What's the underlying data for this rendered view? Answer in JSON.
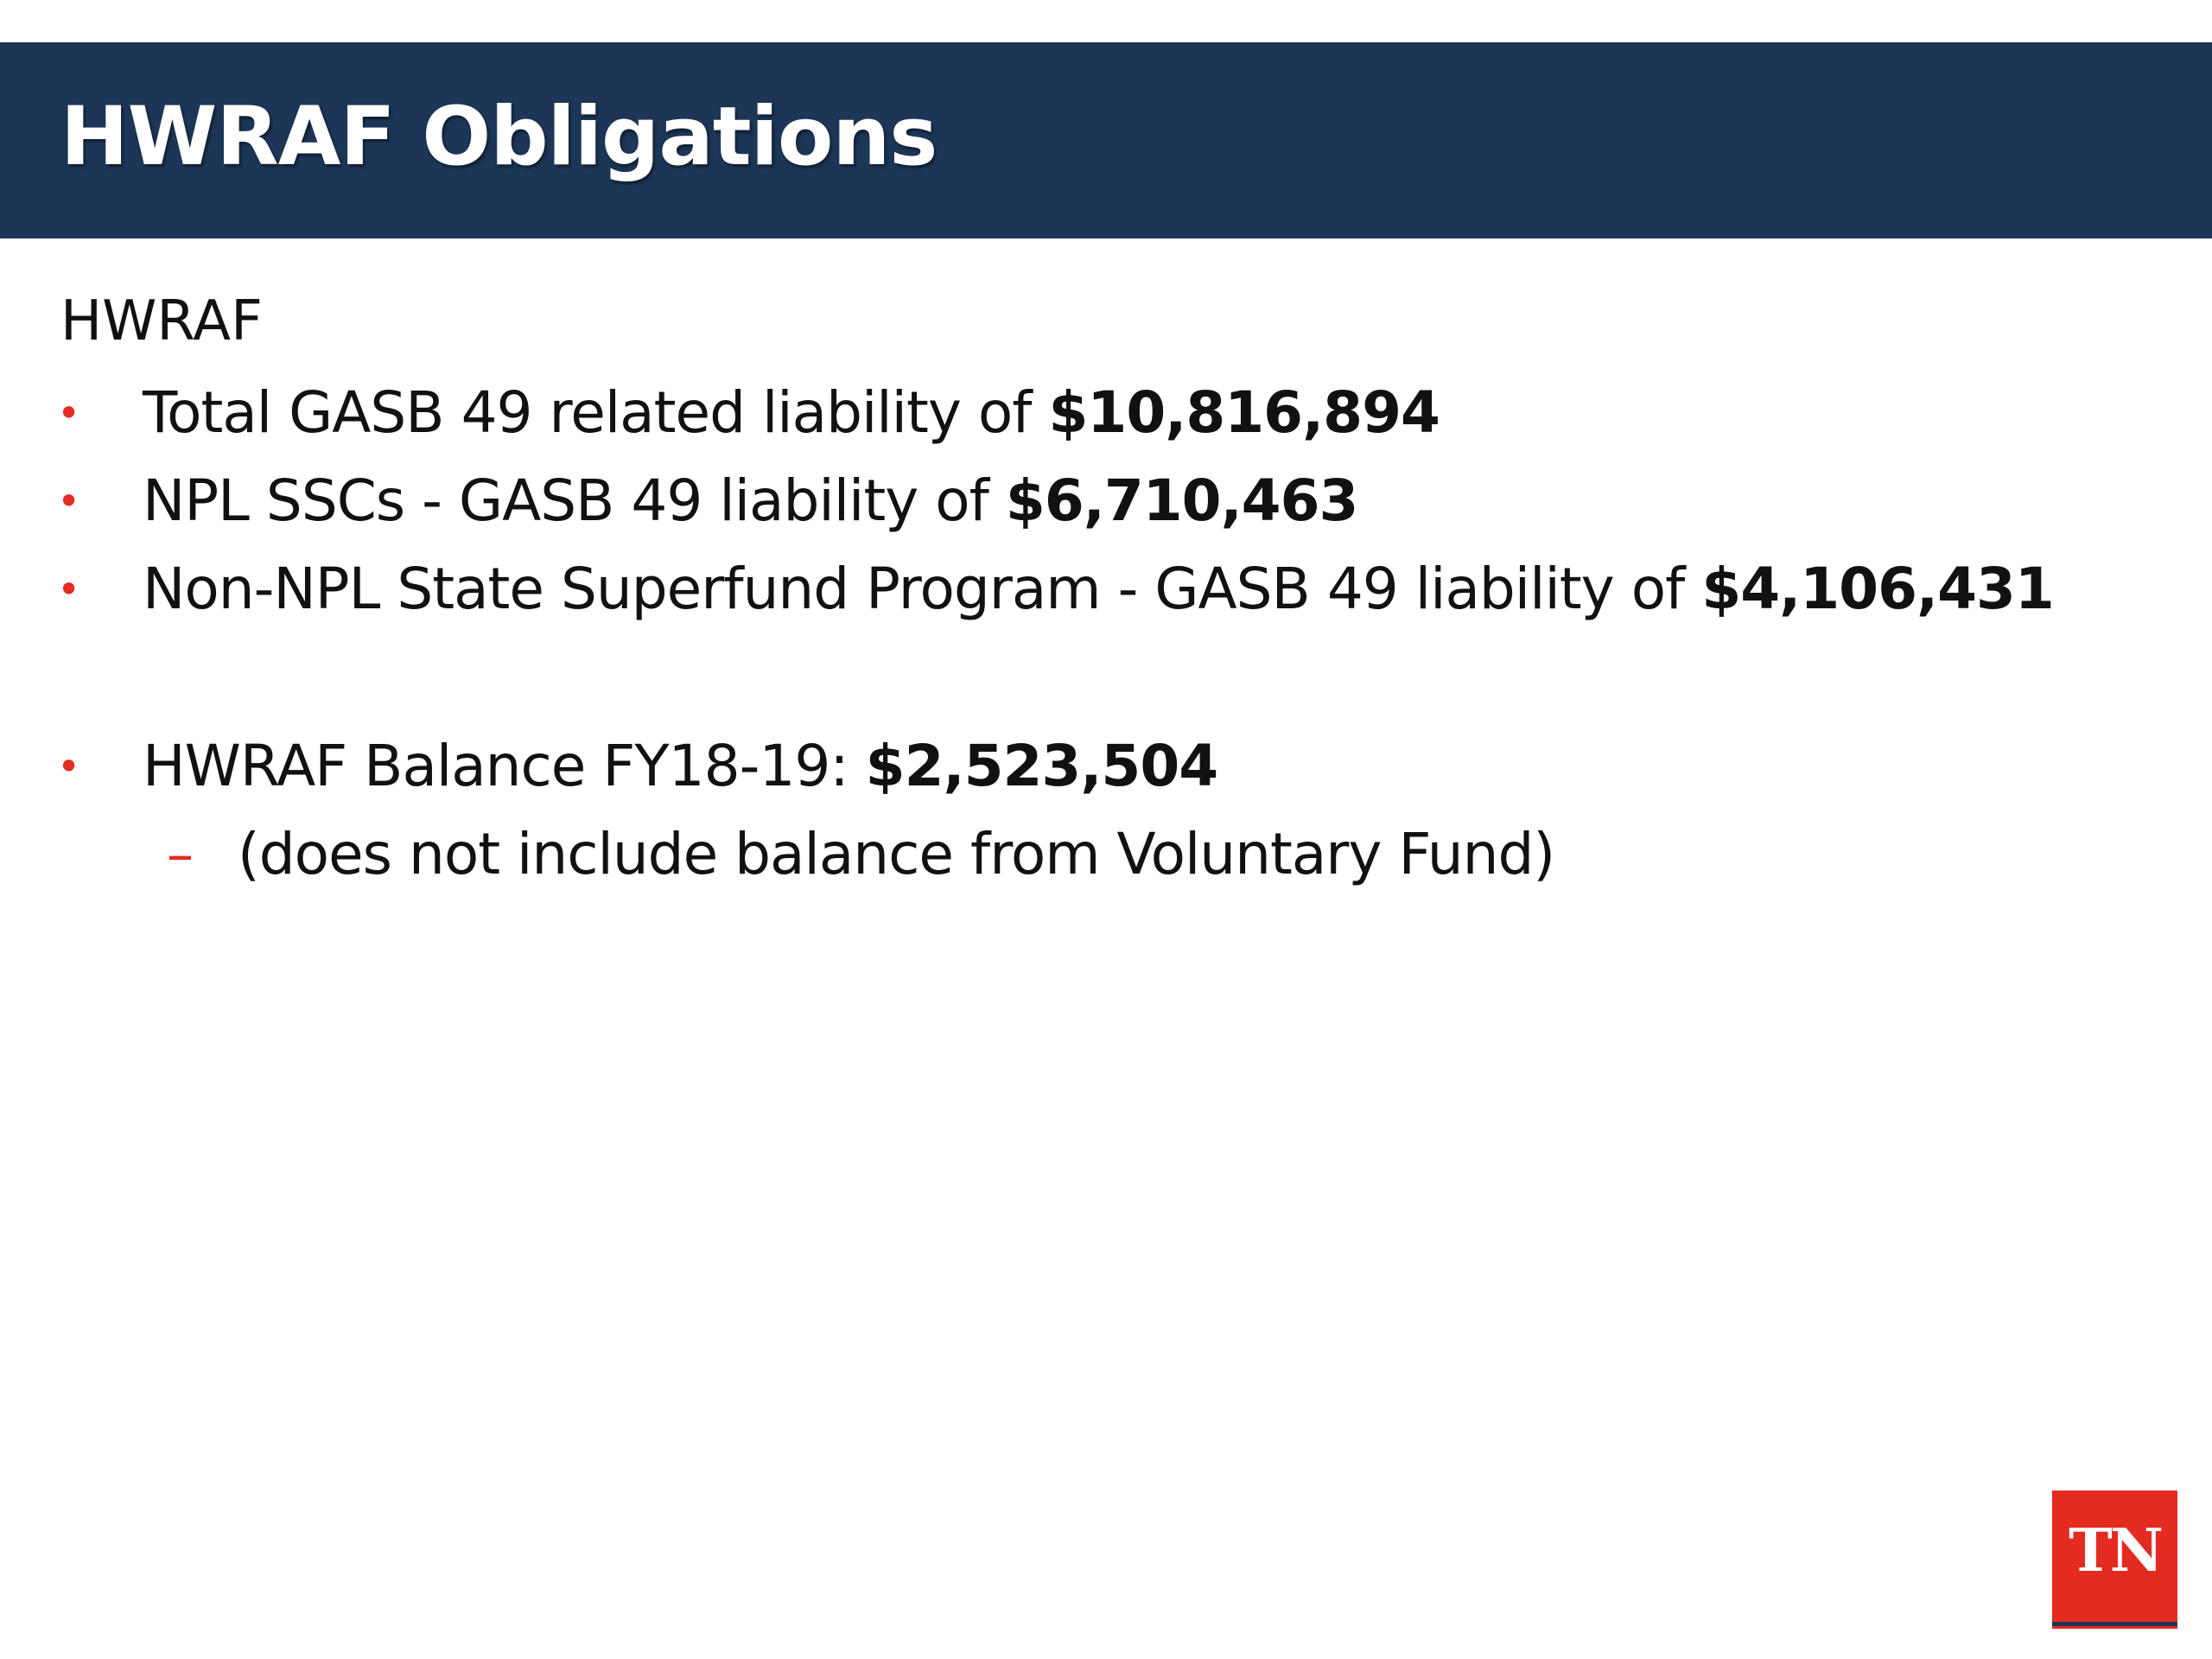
{
  "header": {
    "title": "HWRAF Obligations"
  },
  "body": {
    "section_label": "HWRAF",
    "bullets": [
      {
        "text": "Total GASB 49 related liability of ",
        "amount": "$10,816,894"
      },
      {
        "text": "NPL SSCs - GASB 49 liability of ",
        "amount": "$6,710,463"
      },
      {
        "text": "Non-NPL State Superfund Program - GASB 49 liability of ",
        "amount": "$4,106,431"
      },
      {
        "text": "HWRAF Balance FY18-19: ",
        "amount": "$2,523,504"
      }
    ],
    "sub_bullet": "(does not include balance from Voluntary Fund)"
  },
  "logo": {
    "text": "TN"
  },
  "colors": {
    "header_bg": "#1d3557",
    "bullet_accent": "#e32b22",
    "logo_bg": "#e32b22"
  }
}
